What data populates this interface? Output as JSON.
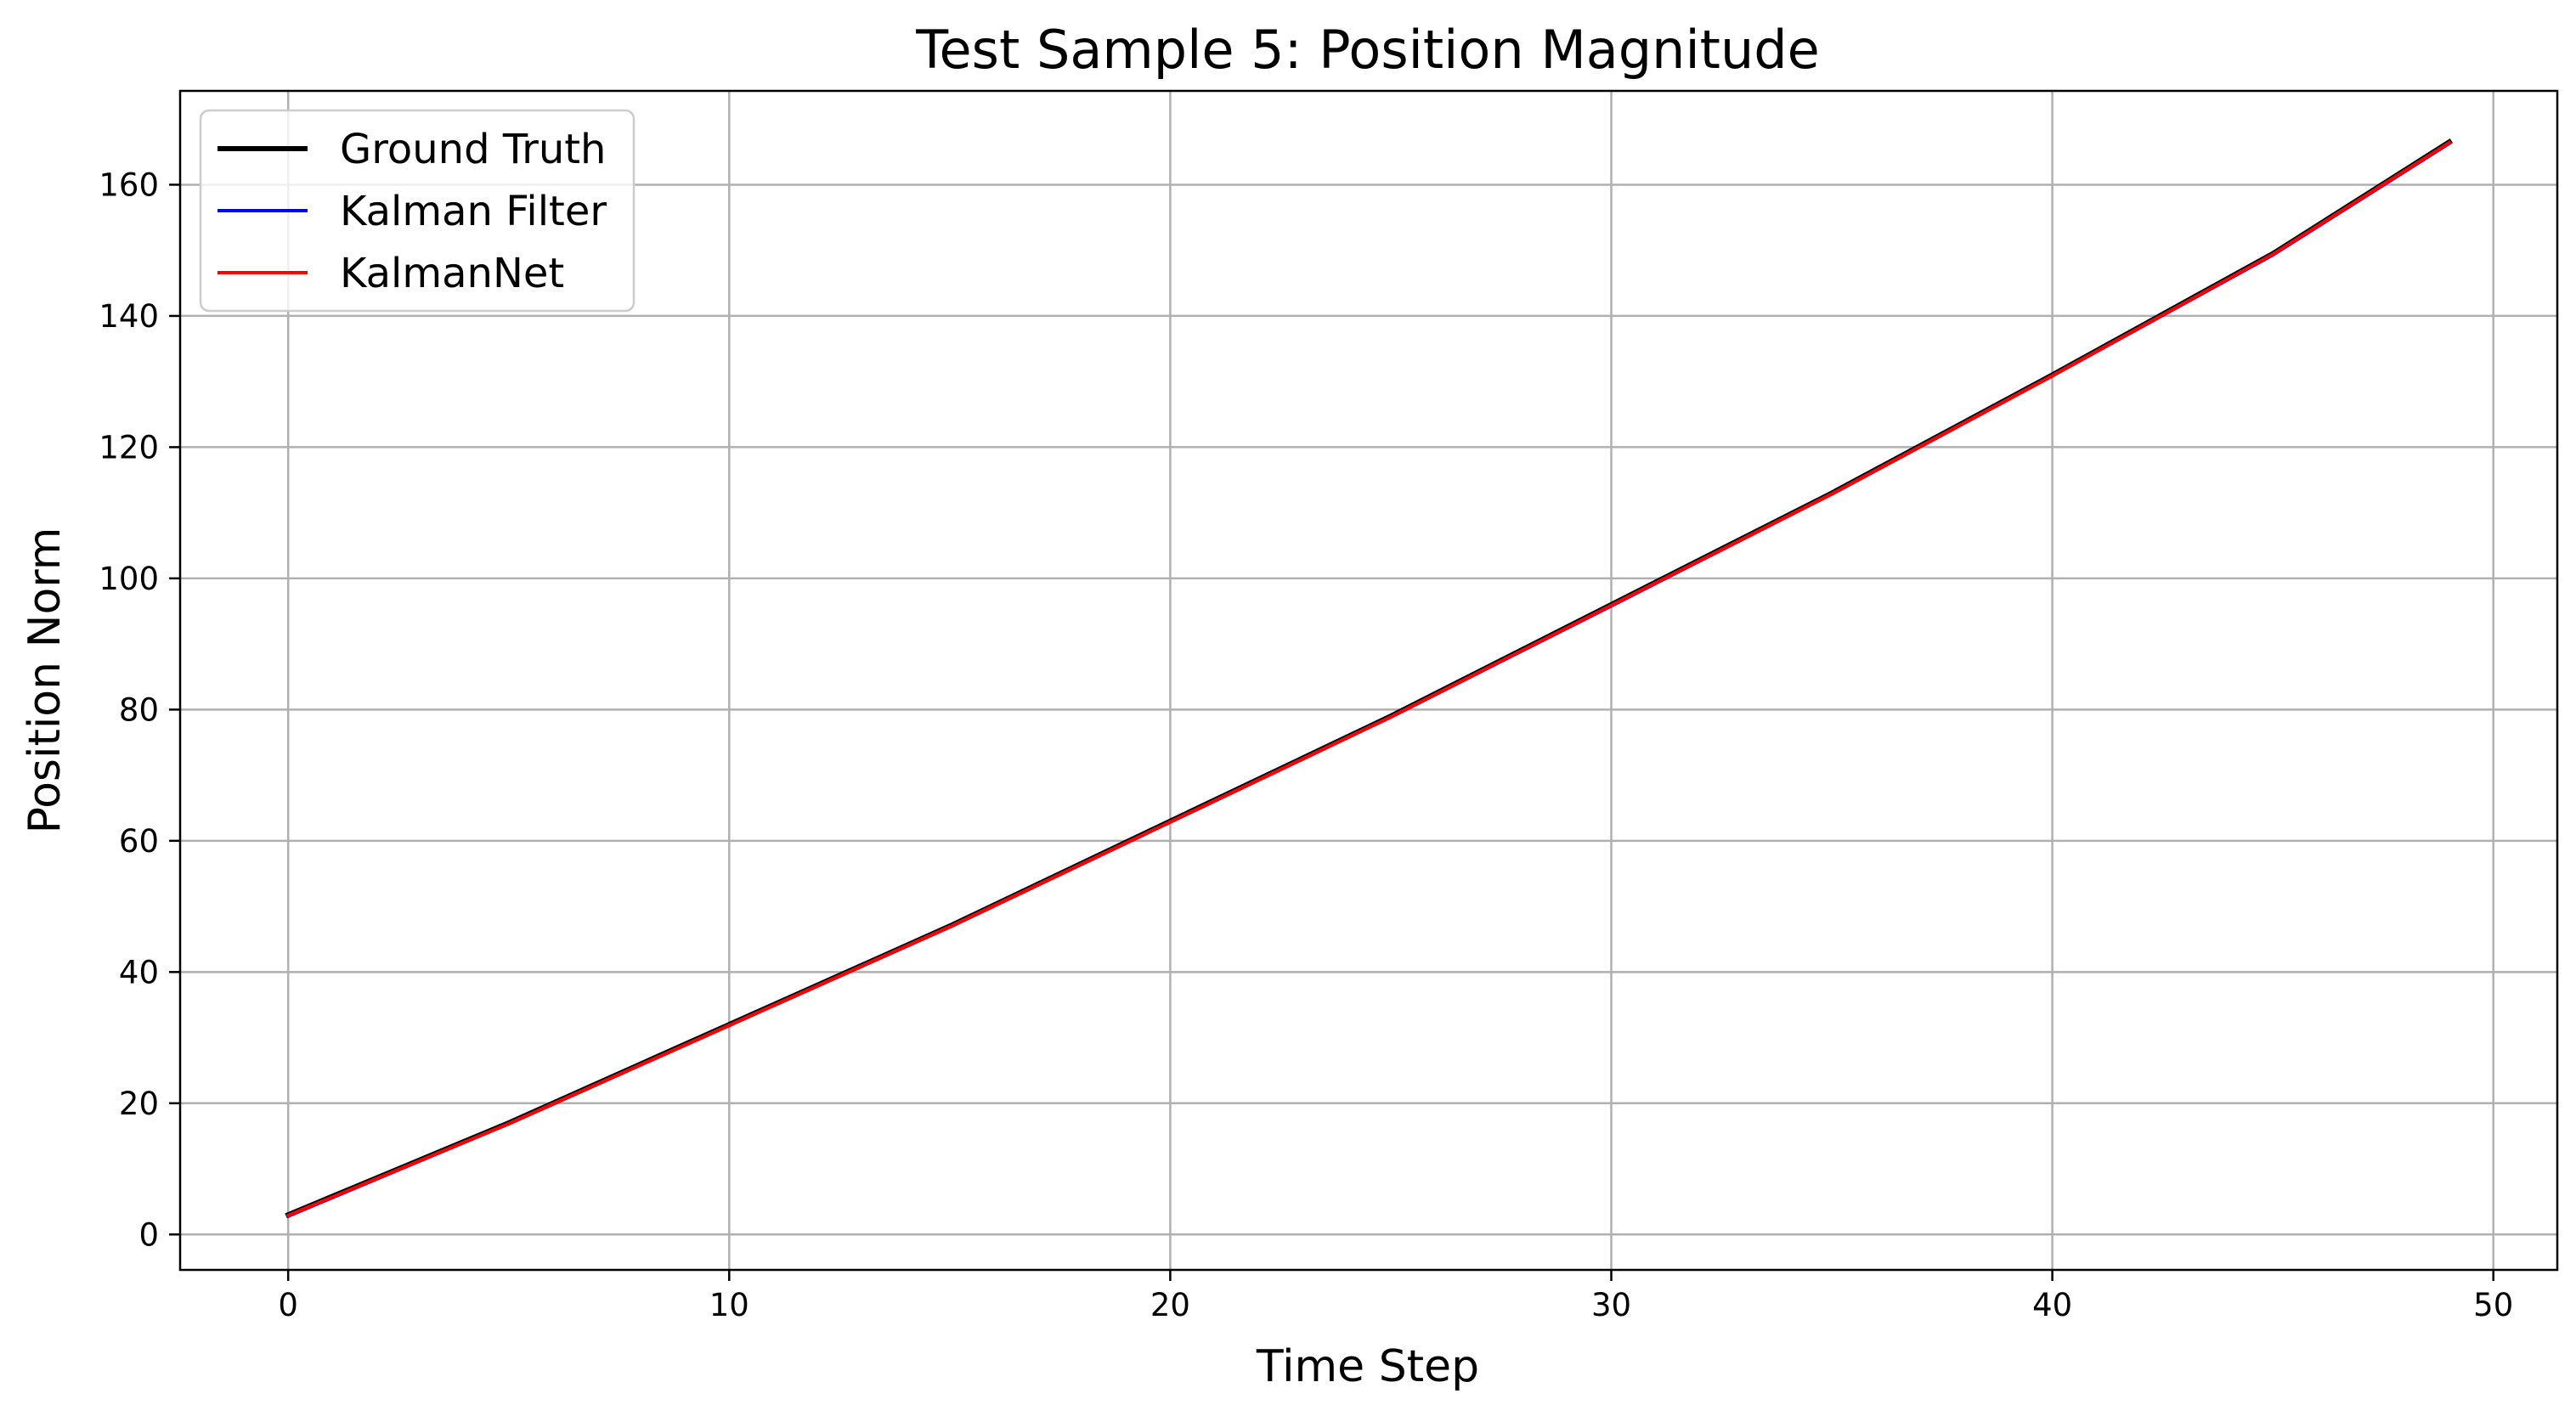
{
  "chart_data": {
    "type": "line",
    "title": "Test Sample 5: Position Magnitude",
    "xlabel": "Time Step",
    "ylabel": "Position Norm",
    "xlim": [
      -2.45,
      51.45
    ],
    "ylim": [
      -5.4,
      174.3
    ],
    "xticks": [
      0,
      10,
      20,
      30,
      40,
      50
    ],
    "yticks": [
      0,
      20,
      40,
      60,
      80,
      100,
      120,
      140,
      160
    ],
    "grid": true,
    "legend_position": "top-left",
    "x": [
      0,
      5,
      10,
      15,
      20,
      25,
      30,
      35,
      40,
      45,
      49
    ],
    "series": [
      {
        "name": "Ground Truth",
        "color": "#000000",
        "values": [
          3.0,
          17.0,
          32.0,
          47.0,
          63.0,
          79.0,
          96.0,
          113.0,
          131.0,
          149.5,
          166.5
        ]
      },
      {
        "name": "Kalman Filter",
        "color": "#0000ff",
        "values": [
          2.8,
          16.9,
          31.9,
          46.9,
          62.9,
          78.9,
          95.8,
          112.9,
          130.9,
          149.3,
          166.3
        ]
      },
      {
        "name": "KalmanNet",
        "color": "#ff0000",
        "values": [
          2.9,
          16.9,
          31.9,
          46.9,
          62.9,
          78.9,
          95.9,
          112.9,
          130.9,
          149.4,
          166.4
        ]
      }
    ]
  }
}
